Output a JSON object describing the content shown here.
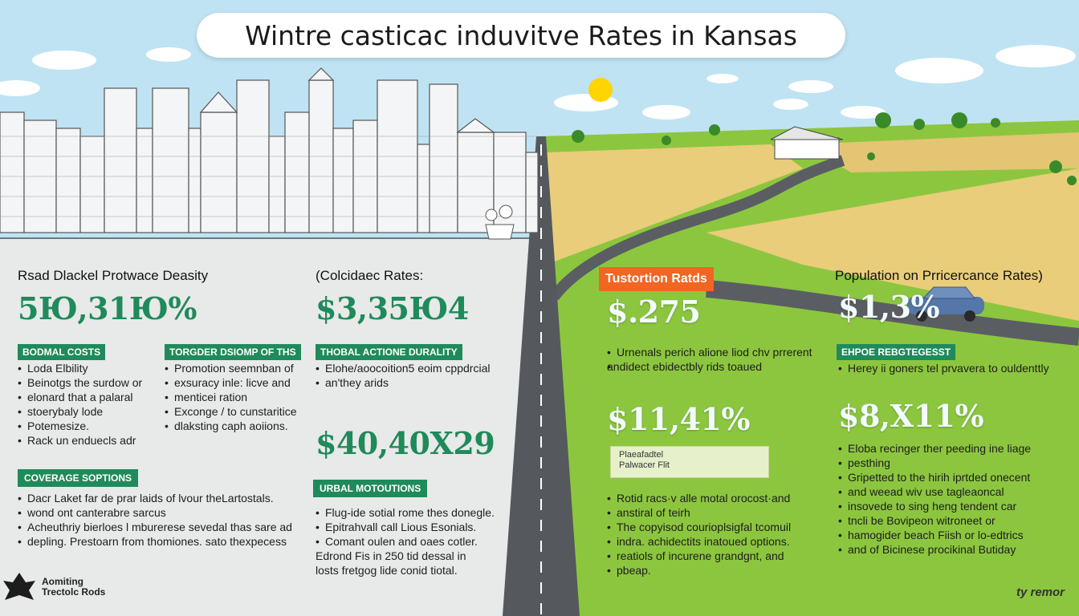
{
  "title": "Wintre casticac induvitve Rates in Kansas",
  "colors": {
    "accent_green": "#1f8a5a",
    "orange": "#f26522",
    "sky": "#bfe3f3",
    "field_green": "#8cc63f",
    "wheat": "#e9cd7a",
    "road": "#5a5e63"
  },
  "left": {
    "col1": {
      "heading": "Rsad Dlackel Protwace Deasity",
      "value": "5Ю,31Ю%",
      "tag1": "BODMAL COSTS",
      "list1": [
        "Loda Elbility",
        "Beinotgs the surdow or",
        "elonard that a palaral",
        "stoerybaly lode",
        "Potemesize.",
        "Rack un enduecls adr"
      ],
      "tag2": "COVERAGE SOPTIONS",
      "list2": [
        "Dacr Laket far de prar laids of lvour theLartostals.",
        "wond ont canterabre sarcus",
        "Acheuthriy bierloes l mburerese sevedal thas sare ad",
        "depling. Prestoarn from thomiones. sato thexpecess"
      ]
    },
    "col2": {
      "tag1": "TORGDER DSIOMP OF THS",
      "list1": [
        "Promotion seemnban of",
        "exsuracy inle: licve and",
        "menticei ration",
        "Exconge / to cunstaritice",
        "dlaksting caph aoiions."
      ]
    },
    "col3": {
      "heading": "(Colcidaec Rates:",
      "value": "$3,35Ю4",
      "tag1": "THOBAL ACTIONE DURALITY",
      "list1": [
        "Elohe/aoocoition5 eoim cppdrcial",
        "an'they arids"
      ],
      "value2": "$40,40X29",
      "tag2": "URBAL MOTOUTIONS",
      "list2": [
        "Flug-ide sotial rome thes donegle.",
        "Epitrahvall call Lious Esonials.",
        "Comant oulen and oaes cotler."
      ],
      "para": [
        "Edrond Fis in 250 tid dessal in",
        "losts fretgog lide conid tiotal."
      ]
    }
  },
  "right": {
    "col1": {
      "tag": "Tustortion Ratds",
      "value": "$.275",
      "list1": [
        "Urnenals perich alione liod chv prrerent",
        "andidect ebidectbly rids toaued"
      ],
      "value2": "$11,41%",
      "box": [
        "Plaeafadtel",
        "Palwacer Flit"
      ],
      "list2": [
        "Rotid racs·v alle motal orocost·and",
        "anstiral of teirh",
        "The copyisod courioplsigfal tcomuil",
        "indra. achidectits inatoued options.",
        "reatiols of incurene grandgnt, and",
        "pbeap."
      ]
    },
    "col2": {
      "heading": "Population on Prricercance Rates)",
      "value": "$1,3%",
      "tag": "EHPOE REBGTEGESST",
      "list1": [
        "Herey ii goners tel prvavera to ouldenttly"
      ],
      "value2": "$8,X11%",
      "list2": [
        "Eloba recinger ther peeding ine liage",
        "pesthing",
        "Gripetted to the hirih iprtded onecent",
        "and weead wiv use tagleaoncal",
        "insovede to sing heng tendent car",
        "tncli be Bovipeon witroneet or",
        "hamogider beach Fiish or lo-edtrics",
        "and of Bicinese procikinal Butiday"
      ]
    }
  },
  "footer": {
    "logo_line1": "Aomiting",
    "logo_line2": "Trectolc Rods",
    "brand": "ty remor"
  }
}
